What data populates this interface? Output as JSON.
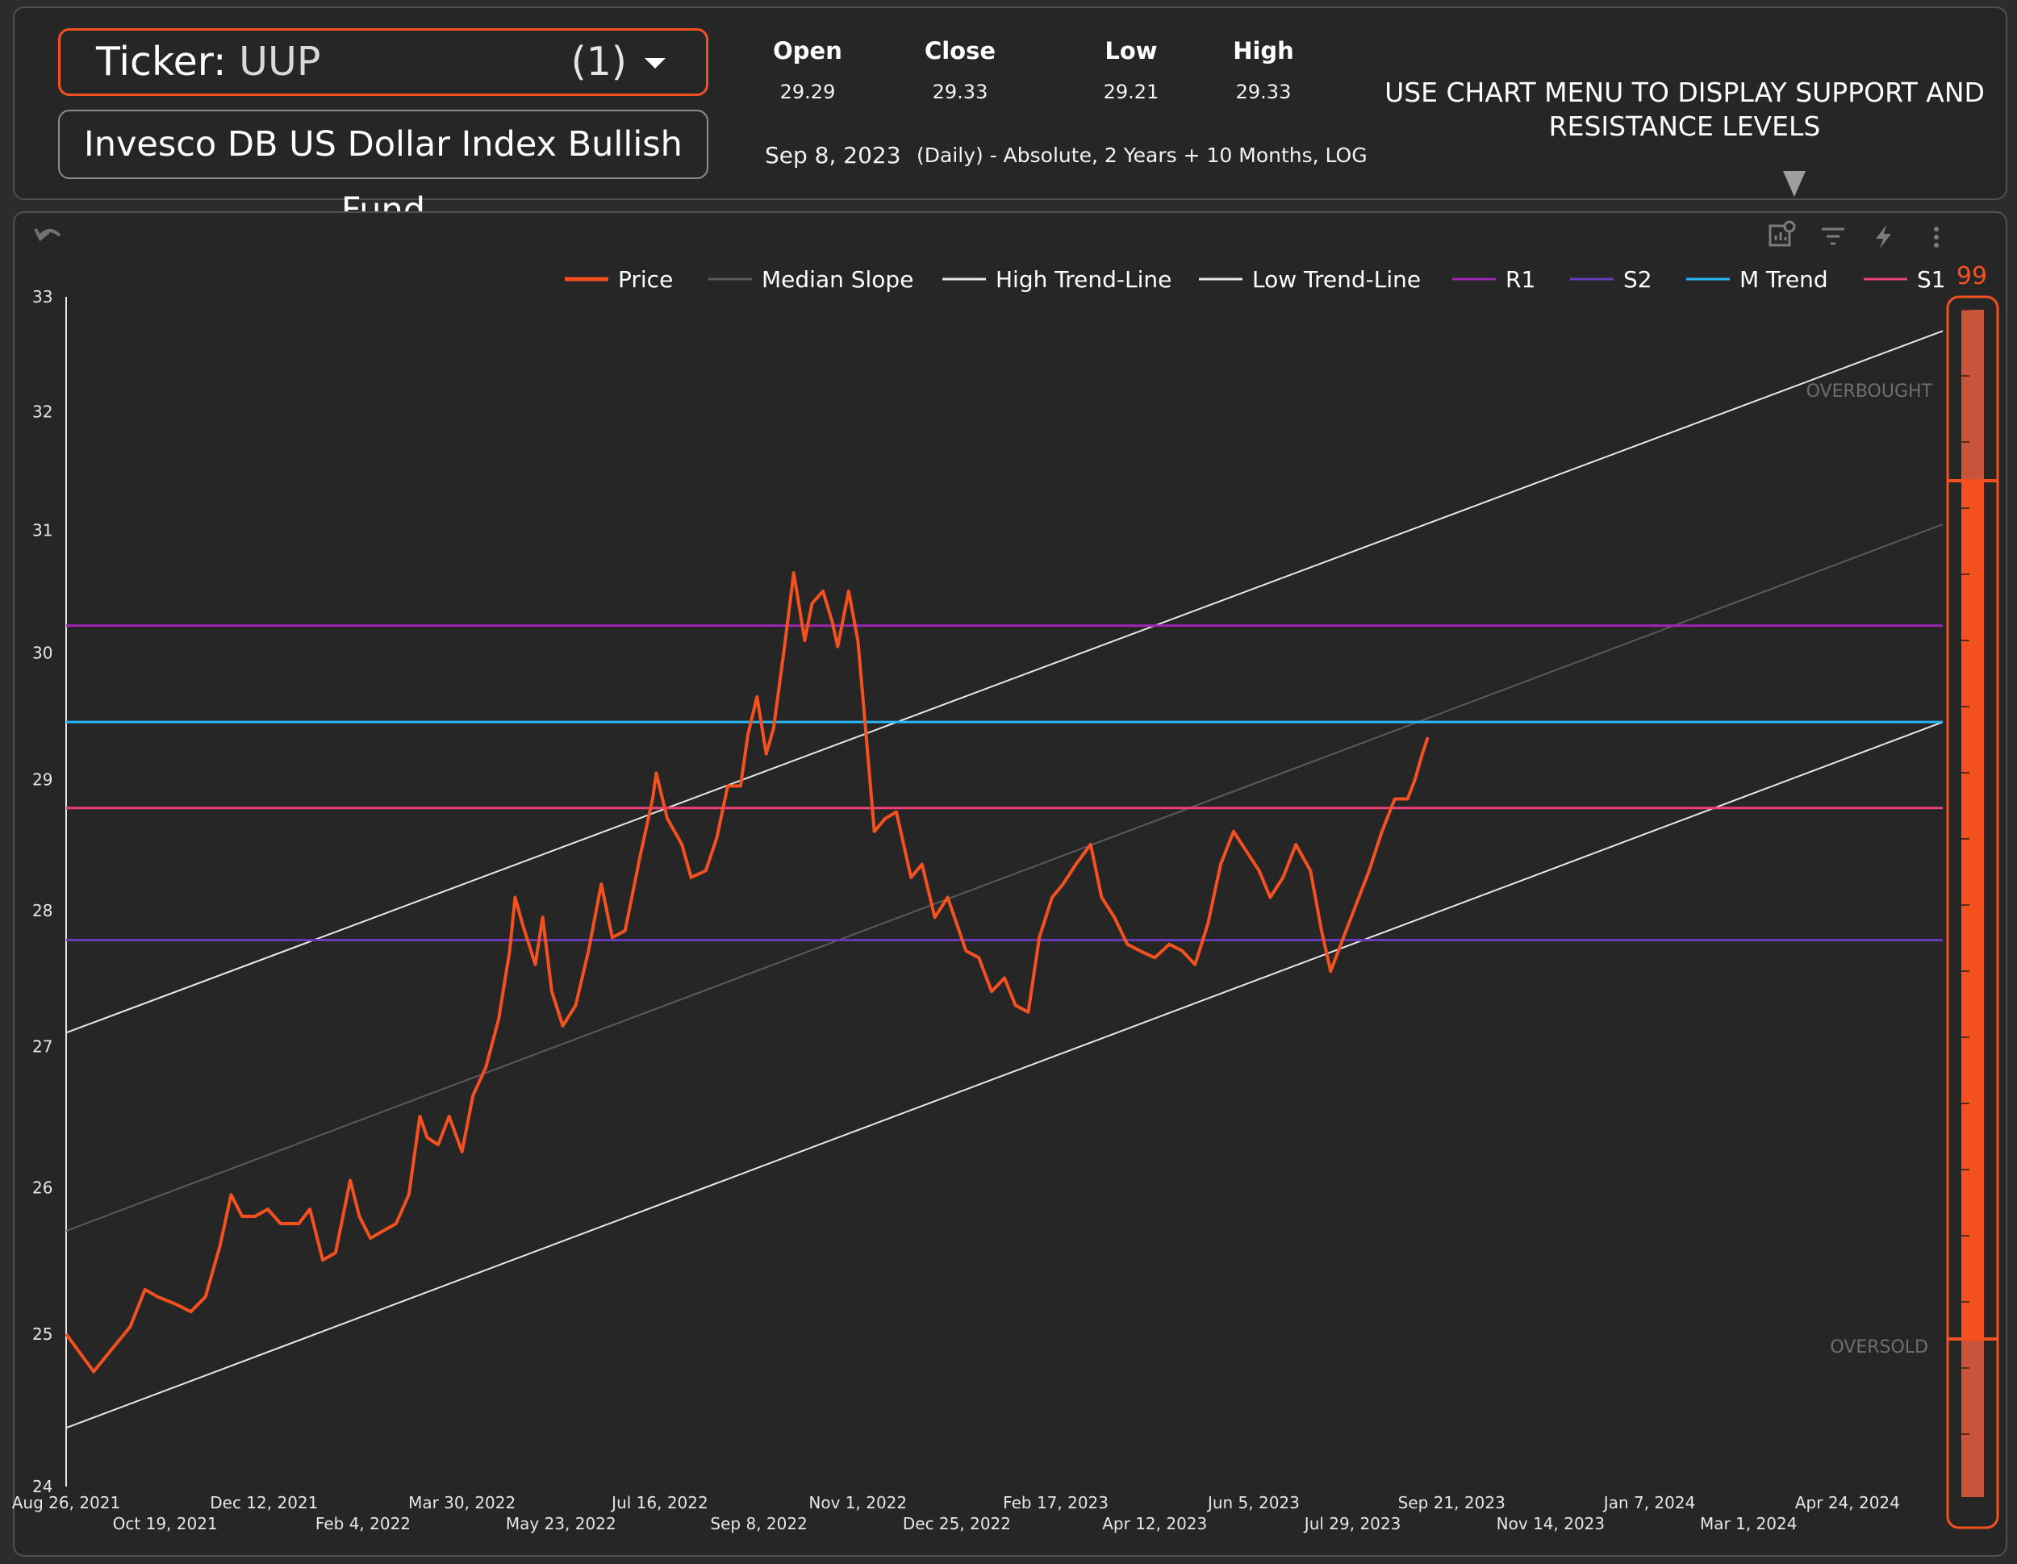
{
  "header": {
    "ticker_label": "Ticker:",
    "ticker_value": "UUP",
    "ticker_count": "(1)",
    "fund_name": "Invesco DB US Dollar Index Bullish Fund",
    "ohlc": {
      "open_label": "Open",
      "open_value": "29.29",
      "close_label": "Close",
      "close_value": "29.33",
      "low_label": "Low",
      "low_value": "29.21",
      "high_label": "High",
      "high_value": "29.33"
    },
    "date": "Sep 8, 2023",
    "info": "(Daily) - Absolute, 2 Years + 10 Months, LOG",
    "menu_hint": "USE CHART MENU TO DISPLAY SUPPORT AND RESISTANCE LEVELS"
  },
  "toolbar": {
    "icons": [
      "undo-icon",
      "chart-settings-icon",
      "filter-icon",
      "lightning-icon",
      "more-vertical-icon"
    ]
  },
  "chart_data": {
    "type": "line",
    "y_scale": "log",
    "ylim": [
      24,
      33
    ],
    "y_ticks": [
      "24",
      "25",
      "26",
      "27",
      "28",
      "29",
      "30",
      "31",
      "32",
      "33"
    ],
    "x_range": [
      "2021-08-26",
      "2024-06-15"
    ],
    "x_ticks": [
      {
        "label": "Aug 26, 2021",
        "date": "2021-08-26",
        "row": 1
      },
      {
        "label": "Oct 19, 2021",
        "date": "2021-10-19",
        "row": 2
      },
      {
        "label": "Dec 12, 2021",
        "date": "2021-12-12",
        "row": 1
      },
      {
        "label": "Feb 4, 2022",
        "date": "2022-02-04",
        "row": 2
      },
      {
        "label": "Mar 30, 2022",
        "date": "2022-03-30",
        "row": 1
      },
      {
        "label": "May 23, 2022",
        "date": "2022-05-23",
        "row": 2
      },
      {
        "label": "Jul 16, 2022",
        "date": "2022-07-16",
        "row": 1
      },
      {
        "label": "Sep 8, 2022",
        "date": "2022-09-08",
        "row": 2
      },
      {
        "label": "Nov 1, 2022",
        "date": "2022-11-01",
        "row": 1
      },
      {
        "label": "Dec 25, 2022",
        "date": "2022-12-25",
        "row": 2
      },
      {
        "label": "Feb 17, 2023",
        "date": "2023-02-17",
        "row": 1
      },
      {
        "label": "Apr 12, 2023",
        "date": "2023-04-12",
        "row": 2
      },
      {
        "label": "Jun 5, 2023",
        "date": "2023-06-05",
        "row": 1
      },
      {
        "label": "Jul 29, 2023",
        "date": "2023-07-29",
        "row": 2
      },
      {
        "label": "Sep 21, 2023",
        "date": "2023-09-21",
        "row": 1
      },
      {
        "label": "Nov 14, 2023",
        "date": "2023-11-14",
        "row": 2
      },
      {
        "label": "Jan 7, 2024",
        "date": "2024-01-07",
        "row": 1
      },
      {
        "label": "Mar 1, 2024",
        "date": "2024-03-01",
        "row": 2
      },
      {
        "label": "Apr 24, 2024",
        "date": "2024-04-24",
        "row": 1
      }
    ],
    "legend": [
      {
        "name": "Price",
        "color": "#f4511e"
      },
      {
        "name": "Median Slope",
        "color": "#5a5a5a"
      },
      {
        "name": "High Trend-Line",
        "color": "#e8e8e8"
      },
      {
        "name": "Low Trend-Line",
        "color": "#e8e8e8"
      },
      {
        "name": "R1",
        "color": "#9c27b0"
      },
      {
        "name": "S2",
        "color": "#673ab7"
      },
      {
        "name": "M Trend",
        "color": "#29b6f6"
      },
      {
        "name": "S1",
        "color": "#ec407a"
      }
    ],
    "horizontal_levels": [
      {
        "name": "R1",
        "value": 30.22,
        "color": "#9c27b0"
      },
      {
        "name": "M Trend",
        "value": 29.45,
        "color": "#29b6f6"
      },
      {
        "name": "S1",
        "value": 28.78,
        "color": "#ec407a"
      },
      {
        "name": "S2",
        "value": 27.78,
        "color": "#673ab7"
      }
    ],
    "trend_lines": [
      {
        "name": "High Trend-Line",
        "start": [
          "2021-08-26",
          27.1
        ],
        "end": [
          "2024-06-15",
          32.7
        ],
        "color": "#e8e8e8"
      },
      {
        "name": "Median Slope",
        "start": [
          "2021-08-26",
          25.7
        ],
        "end": [
          "2024-06-15",
          31.05
        ],
        "color": "#5a5a5a"
      },
      {
        "name": "Low Trend-Line",
        "start": [
          "2021-08-26",
          24.38
        ],
        "end": [
          "2024-06-15",
          29.45
        ],
        "color": "#e8e8e8"
      }
    ],
    "price_series": {
      "name": "Price",
      "color": "#f4511e",
      "points": [
        [
          "2021-08-26",
          25.0
        ],
        [
          "2021-09-01",
          24.9
        ],
        [
          "2021-09-10",
          24.75
        ],
        [
          "2021-09-20",
          24.9
        ],
        [
          "2021-09-30",
          25.05
        ],
        [
          "2021-10-08",
          25.3
        ],
        [
          "2021-10-15",
          25.25
        ],
        [
          "2021-10-25",
          25.2
        ],
        [
          "2021-11-02",
          25.15
        ],
        [
          "2021-11-10",
          25.25
        ],
        [
          "2021-11-18",
          25.6
        ],
        [
          "2021-11-24",
          25.95
        ],
        [
          "2021-11-30",
          25.8
        ],
        [
          "2021-12-07",
          25.8
        ],
        [
          "2021-12-14",
          25.85
        ],
        [
          "2021-12-21",
          25.75
        ],
        [
          "2021-12-31",
          25.75
        ],
        [
          "2022-01-06",
          25.85
        ],
        [
          "2022-01-13",
          25.5
        ],
        [
          "2022-01-20",
          25.55
        ],
        [
          "2022-01-28",
          26.05
        ],
        [
          "2022-02-02",
          25.8
        ],
        [
          "2022-02-08",
          25.65
        ],
        [
          "2022-02-15",
          25.7
        ],
        [
          "2022-02-22",
          25.75
        ],
        [
          "2022-03-01",
          25.95
        ],
        [
          "2022-03-07",
          26.5
        ],
        [
          "2022-03-11",
          26.35
        ],
        [
          "2022-03-17",
          26.3
        ],
        [
          "2022-03-23",
          26.5
        ],
        [
          "2022-03-30",
          26.25
        ],
        [
          "2022-04-05",
          26.65
        ],
        [
          "2022-04-12",
          26.85
        ],
        [
          "2022-04-19",
          27.2
        ],
        [
          "2022-04-25",
          27.7
        ],
        [
          "2022-04-28",
          28.1
        ],
        [
          "2022-05-02",
          27.9
        ],
        [
          "2022-05-09",
          27.6
        ],
        [
          "2022-05-13",
          27.95
        ],
        [
          "2022-05-18",
          27.4
        ],
        [
          "2022-05-24",
          27.15
        ],
        [
          "2022-05-31",
          27.3
        ],
        [
          "2022-06-07",
          27.7
        ],
        [
          "2022-06-14",
          28.2
        ],
        [
          "2022-06-20",
          27.8
        ],
        [
          "2022-06-27",
          27.85
        ],
        [
          "2022-07-05",
          28.4
        ],
        [
          "2022-07-12",
          28.85
        ],
        [
          "2022-07-14",
          29.05
        ],
        [
          "2022-07-20",
          28.7
        ],
        [
          "2022-07-28",
          28.5
        ],
        [
          "2022-08-02",
          28.25
        ],
        [
          "2022-08-10",
          28.3
        ],
        [
          "2022-08-16",
          28.55
        ],
        [
          "2022-08-22",
          28.95
        ],
        [
          "2022-08-29",
          28.95
        ],
        [
          "2022-09-02",
          29.35
        ],
        [
          "2022-09-07",
          29.65
        ],
        [
          "2022-09-12",
          29.2
        ],
        [
          "2022-09-16",
          29.4
        ],
        [
          "2022-09-22",
          30.05
        ],
        [
          "2022-09-27",
          30.65
        ],
        [
          "2022-10-03",
          30.1
        ],
        [
          "2022-10-07",
          30.4
        ],
        [
          "2022-10-13",
          30.5
        ],
        [
          "2022-10-18",
          30.25
        ],
        [
          "2022-10-21",
          30.05
        ],
        [
          "2022-10-27",
          30.5
        ],
        [
          "2022-11-01",
          30.1
        ],
        [
          "2022-11-04",
          29.6
        ],
        [
          "2022-11-10",
          28.6
        ],
        [
          "2022-11-16",
          28.7
        ],
        [
          "2022-11-22",
          28.75
        ],
        [
          "2022-11-30",
          28.25
        ],
        [
          "2022-12-06",
          28.35
        ],
        [
          "2022-12-13",
          27.95
        ],
        [
          "2022-12-20",
          28.1
        ],
        [
          "2022-12-30",
          27.7
        ],
        [
          "2023-01-06",
          27.65
        ],
        [
          "2023-01-13",
          27.4
        ],
        [
          "2023-01-20",
          27.5
        ],
        [
          "2023-01-26",
          27.3
        ],
        [
          "2023-02-02",
          27.25
        ],
        [
          "2023-02-08",
          27.8
        ],
        [
          "2023-02-15",
          28.1
        ],
        [
          "2023-02-21",
          28.2
        ],
        [
          "2023-02-28",
          28.35
        ],
        [
          "2023-03-08",
          28.5
        ],
        [
          "2023-03-14",
          28.1
        ],
        [
          "2023-03-21",
          27.95
        ],
        [
          "2023-03-28",
          27.75
        ],
        [
          "2023-04-04",
          27.7
        ],
        [
          "2023-04-12",
          27.65
        ],
        [
          "2023-04-20",
          27.75
        ],
        [
          "2023-04-27",
          27.7
        ],
        [
          "2023-05-04",
          27.6
        ],
        [
          "2023-05-11",
          27.9
        ],
        [
          "2023-05-18",
          28.35
        ],
        [
          "2023-05-25",
          28.6
        ],
        [
          "2023-06-01",
          28.45
        ],
        [
          "2023-06-08",
          28.3
        ],
        [
          "2023-06-14",
          28.1
        ],
        [
          "2023-06-21",
          28.25
        ],
        [
          "2023-06-28",
          28.5
        ],
        [
          "2023-07-06",
          28.3
        ],
        [
          "2023-07-12",
          27.85
        ],
        [
          "2023-07-17",
          27.55
        ],
        [
          "2023-07-24",
          27.8
        ],
        [
          "2023-07-31",
          28.05
        ],
        [
          "2023-08-07",
          28.3
        ],
        [
          "2023-08-14",
          28.6
        ],
        [
          "2023-08-21",
          28.85
        ],
        [
          "2023-08-28",
          28.85
        ],
        [
          "2023-09-01",
          29.0
        ],
        [
          "2023-09-05",
          29.2
        ],
        [
          "2023-09-08",
          29.33
        ]
      ]
    }
  },
  "gauge": {
    "value": "99",
    "overbought_label": "OVERBOUGHT",
    "oversold_label": "OVERSOLD",
    "fill_color": "#f4511e",
    "zone_color": "#c8553a"
  }
}
